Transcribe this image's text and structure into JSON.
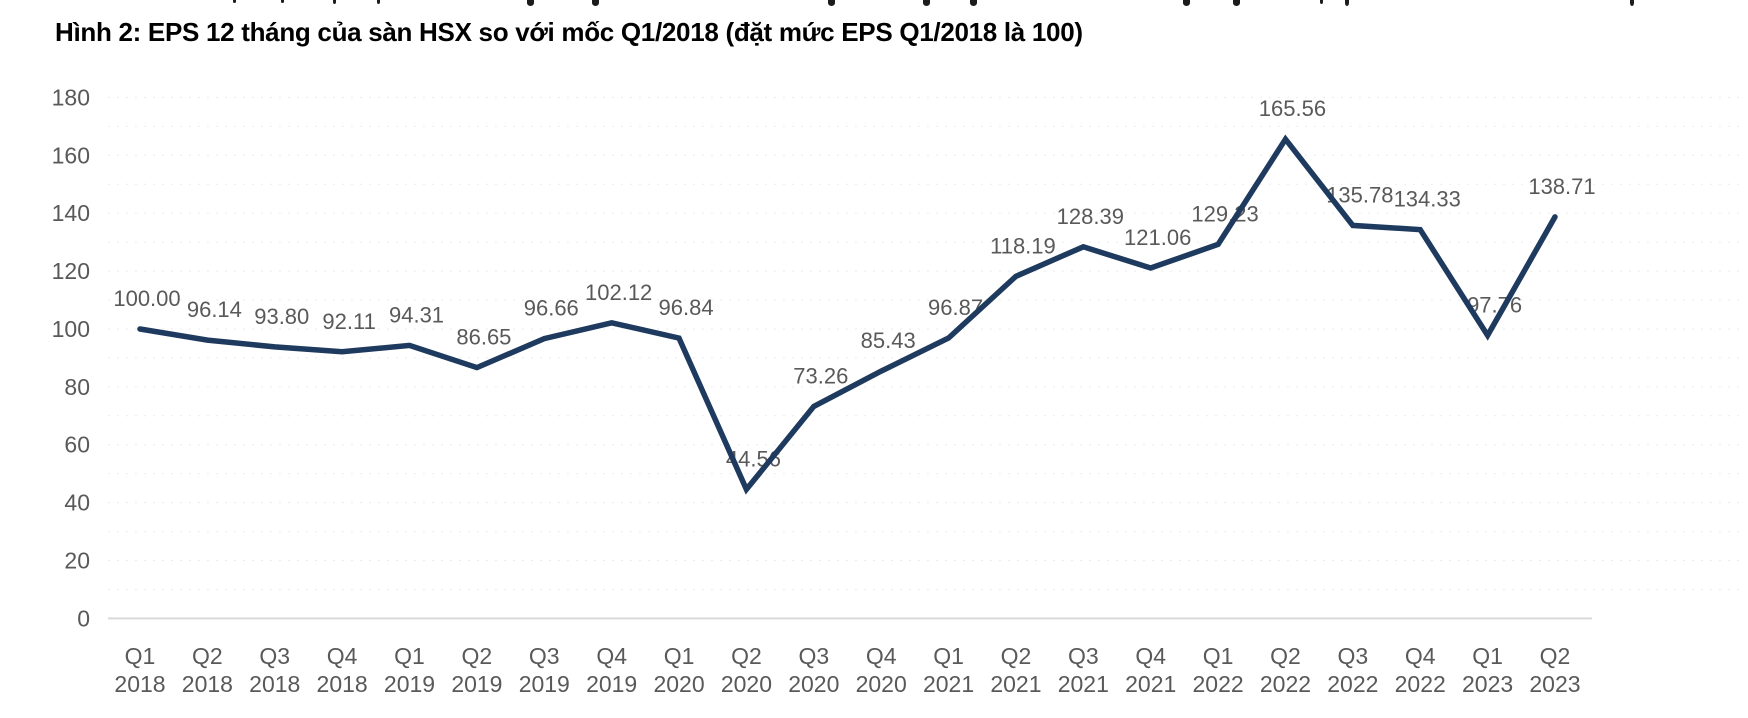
{
  "figure_title": "Hình 2: EPS 12 tháng của sàn HSX so với mốc Q1/2018 (đặt mức EPS Q1/2018 là 100)",
  "chart_data": {
    "type": "line",
    "title": "Hình 2: EPS 12 tháng của sàn HSX so với mốc Q1/2018 (đặt mức EPS Q1/2018 là 100)",
    "categories": [
      "Q1 2018",
      "Q2 2018",
      "Q3 2018",
      "Q4 2018",
      "Q1 2019",
      "Q2 2019",
      "Q3 2019",
      "Q4 2019",
      "Q1 2020",
      "Q2 2020",
      "Q3 2020",
      "Q4 2020",
      "Q1 2021",
      "Q2 2021",
      "Q3 2021",
      "Q4 2021",
      "Q1 2022",
      "Q2 2022",
      "Q3 2022",
      "Q4 2022",
      "Q1 2023",
      "Q2 2023"
    ],
    "values": [
      100.0,
      96.14,
      93.8,
      92.11,
      94.31,
      86.65,
      96.66,
      102.12,
      96.84,
      44.56,
      73.26,
      85.43,
      96.87,
      118.19,
      128.39,
      121.06,
      129.23,
      165.56,
      135.78,
      134.33,
      97.76,
      138.71
    ],
    "data_label_format": "2dp",
    "xlabel": "",
    "ylabel": "",
    "ylim": [
      0,
      180
    ],
    "ytick_interval": 20,
    "grid": {
      "horizontal": "dotted",
      "interval": 10,
      "vertical": "none"
    },
    "legend": "none",
    "colors": {
      "line": "#1f3a5f",
      "axis_text": "#595959",
      "data_label_text": "#595959",
      "axis_line": "#d9d9d9",
      "gridline": "#ebebeb",
      "title_text": "#000000"
    }
  }
}
